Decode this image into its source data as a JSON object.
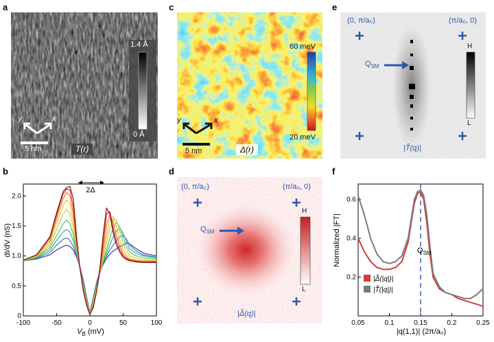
{
  "figure": {
    "panels": {
      "a": {
        "label": "a",
        "colorbar_top": "1.4 Å",
        "colorbar_bottom": "0 Å",
        "scalebar": "5 nm",
        "axis_x": "x",
        "axis_y": "y",
        "map_label": "T(r)"
      },
      "c": {
        "label": "c",
        "colorbar_top": "60 meV",
        "colorbar_bottom": "20 meV",
        "scalebar": "5 nm",
        "axis_x": "x",
        "axis_y": "y",
        "map_label": "Δ(r)"
      },
      "e": {
        "label": "e",
        "corner_left": "(0, π/a₀)",
        "corner_right": "(π/a₀, 0)",
        "arrow_label": "Q",
        "arrow_label_sub": "SM",
        "colorbar_top": "H",
        "colorbar_bottom": "L",
        "map_label": "|T̃(q)|"
      },
      "d": {
        "label": "d",
        "corner_left": "(0, π/a₀)",
        "corner_right": "(π/a₀, 0)",
        "arrow_label": "Q",
        "arrow_label_sub": "SM",
        "colorbar_top": "H",
        "colorbar_bottom": "L",
        "map_label": "|Δ̃(q)|"
      },
      "b": {
        "label": "b",
        "ylabel": "dI/dV (nS)",
        "xlabel": "V",
        "xlabel_sub": "B",
        "xlabel_unit": " (mV)",
        "gap_label": "2Δ"
      },
      "f": {
        "label": "f",
        "ylabel": "Normalized |FT|",
        "xlabel": "|q(1,1)| (2π/a₀)",
        "vline_label": "Q",
        "vline_label_sub": "SM"
      }
    }
  },
  "chart_data": [
    {
      "id": "b",
      "type": "line",
      "xlabel": "VB (mV)",
      "ylabel": "dI/dV (nS)",
      "xlim": [
        -100,
        100
      ],
      "ylim": [
        0,
        2.2
      ],
      "xticks": [
        -100,
        -50,
        0,
        50,
        100
      ],
      "yticks": [
        0,
        0.5,
        1.0,
        1.5,
        2.0
      ],
      "x": [
        -100,
        -80,
        -60,
        -50,
        -40,
        -35,
        -30,
        -25,
        -20,
        -15,
        -10,
        -5,
        0,
        5,
        10,
        15,
        20,
        25,
        30,
        35,
        40,
        45,
        50,
        55,
        60,
        70,
        80,
        100
      ],
      "series": [
        {
          "color": "#2e3f9e",
          "values": [
            0.92,
            0.95,
            1.02,
            1.1,
            1.16,
            1.18,
            1.16,
            1.1,
            0.98,
            0.82,
            0.6,
            0.32,
            0.06,
            0.3,
            0.55,
            0.74,
            0.86,
            0.96,
            1.03,
            1.08,
            1.12,
            1.16,
            1.18,
            1.22,
            1.2,
            1.12,
            1.05,
            1.0
          ]
        },
        {
          "color": "#3b7bc8",
          "values": [
            0.92,
            0.96,
            1.06,
            1.18,
            1.28,
            1.3,
            1.26,
            1.16,
            1.0,
            0.8,
            0.56,
            0.3,
            0.05,
            0.28,
            0.52,
            0.72,
            0.88,
            1.0,
            1.1,
            1.18,
            1.26,
            1.32,
            1.34,
            1.28,
            1.18,
            1.08,
            1.02,
            0.98
          ]
        },
        {
          "color": "#3aa6a6",
          "values": [
            0.92,
            0.97,
            1.1,
            1.26,
            1.4,
            1.44,
            1.4,
            1.26,
            1.04,
            0.8,
            0.54,
            0.28,
            0.05,
            0.26,
            0.5,
            0.72,
            0.9,
            1.04,
            1.18,
            1.32,
            1.42,
            1.46,
            1.38,
            1.24,
            1.12,
            1.04,
            1.0,
            0.97
          ]
        },
        {
          "color": "#5fbf5a",
          "values": [
            0.92,
            0.98,
            1.14,
            1.34,
            1.54,
            1.6,
            1.54,
            1.36,
            1.08,
            0.8,
            0.52,
            0.27,
            0.04,
            0.24,
            0.48,
            0.72,
            0.92,
            1.1,
            1.3,
            1.48,
            1.56,
            1.48,
            1.3,
            1.16,
            1.06,
            1.0,
            0.97,
            0.95
          ]
        },
        {
          "color": "#bcd24a",
          "values": [
            0.93,
            0.99,
            1.18,
            1.44,
            1.7,
            1.78,
            1.7,
            1.46,
            1.12,
            0.8,
            0.5,
            0.25,
            0.04,
            0.22,
            0.46,
            0.72,
            0.96,
            1.2,
            1.46,
            1.62,
            1.6,
            1.4,
            1.2,
            1.08,
            1.0,
            0.96,
            0.94,
            0.93
          ]
        },
        {
          "color": "#f0c22e",
          "values": [
            0.93,
            1.0,
            1.22,
            1.54,
            1.84,
            1.94,
            1.86,
            1.58,
            1.16,
            0.8,
            0.48,
            0.24,
            0.03,
            0.2,
            0.44,
            0.72,
            1.02,
            1.34,
            1.62,
            1.66,
            1.48,
            1.26,
            1.1,
            1.02,
            0.96,
            0.93,
            0.92,
            0.92
          ]
        },
        {
          "color": "#ee7a2a",
          "values": [
            0.93,
            1.01,
            1.26,
            1.62,
            1.96,
            2.06,
            2.0,
            1.7,
            1.2,
            0.8,
            0.46,
            0.22,
            0.03,
            0.18,
            0.42,
            0.74,
            1.1,
            1.52,
            1.7,
            1.56,
            1.34,
            1.16,
            1.04,
            0.98,
            0.94,
            0.92,
            0.91,
            0.91
          ]
        },
        {
          "color": "#d42b2b",
          "values": [
            0.93,
            1.02,
            1.3,
            1.68,
            2.04,
            2.12,
            2.1,
            1.82,
            1.26,
            0.8,
            0.44,
            0.2,
            0.02,
            0.16,
            0.4,
            0.76,
            1.22,
            1.7,
            1.74,
            1.46,
            1.24,
            1.1,
            1.0,
            0.96,
            0.93,
            0.91,
            0.9,
            0.9
          ]
        },
        {
          "color": "#7a1a1a",
          "values": [
            0.93,
            1.02,
            1.32,
            1.72,
            2.08,
            2.14,
            2.16,
            1.96,
            1.32,
            0.8,
            0.42,
            0.18,
            0.02,
            0.14,
            0.4,
            0.8,
            1.36,
            1.8,
            1.7,
            1.38,
            1.18,
            1.06,
            0.98,
            0.94,
            0.92,
            0.9,
            0.89,
            0.89
          ]
        }
      ]
    },
    {
      "id": "f",
      "type": "line",
      "xlabel": "|q(1,1)| (2π/a₀)",
      "ylabel": "Normalized |FT|",
      "xlim": [
        0.05,
        0.25
      ],
      "ylim": [
        0.0,
        0.68
      ],
      "xticks": [
        0.05,
        0.1,
        0.15,
        0.2,
        0.25
      ],
      "yticks": [
        0.2,
        0.4,
        0.6
      ],
      "vline": 0.15,
      "x": [
        0.05,
        0.06,
        0.07,
        0.08,
        0.09,
        0.1,
        0.11,
        0.12,
        0.13,
        0.135,
        0.14,
        0.145,
        0.15,
        0.155,
        0.16,
        0.165,
        0.17,
        0.18,
        0.19,
        0.2,
        0.21,
        0.22,
        0.23,
        0.24,
        0.25
      ],
      "series": [
        {
          "name": "|Δ̃(|q|)|",
          "color": "#d93a3a",
          "values": [
            0.4,
            0.33,
            0.28,
            0.25,
            0.24,
            0.24,
            0.25,
            0.28,
            0.38,
            0.48,
            0.58,
            0.63,
            0.64,
            0.6,
            0.48,
            0.32,
            0.2,
            0.14,
            0.12,
            0.11,
            0.09,
            0.08,
            0.07,
            0.06,
            0.05
          ]
        },
        {
          "name": "|T̃(|q|)|",
          "color": "#7a7a7a",
          "values": [
            0.62,
            0.52,
            0.4,
            0.32,
            0.28,
            0.27,
            0.28,
            0.31,
            0.4,
            0.5,
            0.6,
            0.64,
            0.65,
            0.62,
            0.52,
            0.36,
            0.22,
            0.15,
            0.12,
            0.11,
            0.1,
            0.09,
            0.09,
            0.11,
            0.14
          ]
        }
      ]
    }
  ]
}
